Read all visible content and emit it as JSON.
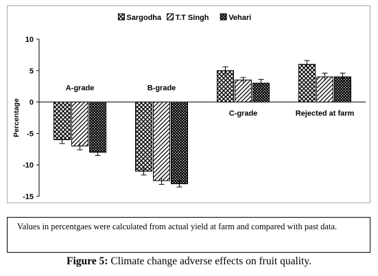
{
  "chart_data": {
    "type": "bar",
    "categories": [
      "A-grade",
      "B-grade",
      "C-grade",
      "Rejected at farm"
    ],
    "series": [
      {
        "name": "Sargodha",
        "values": [
          -6,
          -11,
          5,
          6
        ],
        "errors": [
          0.6,
          0.6,
          0.6,
          0.6
        ],
        "pattern": "cross"
      },
      {
        "name": "T.T Singh",
        "values": [
          -7,
          -12.5,
          3.5,
          4
        ],
        "errors": [
          0.6,
          0.6,
          0.4,
          0.6
        ],
        "pattern": "diagonal"
      },
      {
        "name": "Vehari",
        "values": [
          -8,
          -13,
          3,
          4
        ],
        "errors": [
          0.5,
          0.5,
          0.6,
          0.6
        ],
        "pattern": "dense"
      }
    ],
    "ylabel": "Percentage",
    "ylim": [
      -15,
      10
    ],
    "yticks": [
      10,
      5,
      0,
      -5,
      -10,
      -15
    ],
    "legend_position": "top",
    "grid": false
  },
  "note": "Values in percentgaes were calculated from actual yield at farm and compared with past data.",
  "caption": {
    "label": "Figure 5:",
    "text": "Climate change adverse effects on fruit quality."
  }
}
